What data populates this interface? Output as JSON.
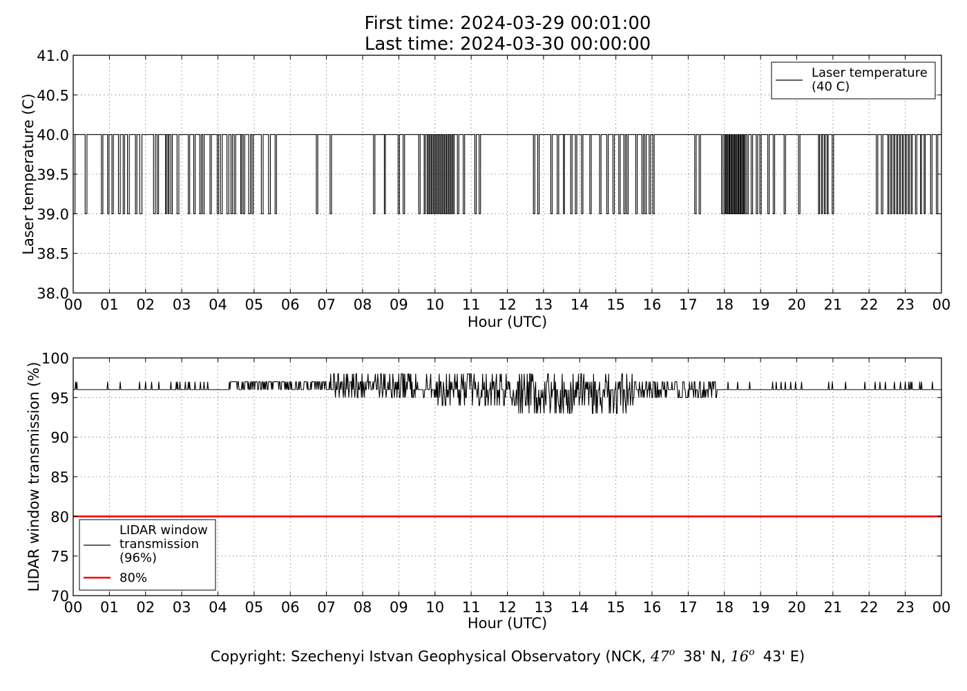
{
  "title": {
    "line1": "First time: 2024-03-29 00:01:00",
    "line2": "Last time: 2024-03-30 00:00:00"
  },
  "copyright": {
    "prefix": "Copyright: Szechenyi Istvan Geophysical Observatory (NCK, ",
    "lat_deg": "47",
    "lat_min": "38' N, ",
    "lon_deg": "16",
    "lon_min": "43' E)",
    "degree_mark": "o"
  },
  "chart_data": [
    {
      "type": "line",
      "name": "laser-temperature-panel",
      "xlabel": "Hour (UTC)",
      "ylabel": "Laser temperature (C)",
      "xlim": [
        0,
        24
      ],
      "ylim": [
        38.0,
        41.0
      ],
      "x_ticks": [
        "00",
        "01",
        "02",
        "03",
        "04",
        "05",
        "06",
        "07",
        "08",
        "09",
        "10",
        "11",
        "12",
        "13",
        "14",
        "15",
        "16",
        "17",
        "18",
        "19",
        "20",
        "21",
        "22",
        "23",
        "00"
      ],
      "y_ticks": [
        "38.0",
        "38.5",
        "39.0",
        "39.5",
        "40.0",
        "40.5",
        "41.0"
      ],
      "grid": true,
      "legend_position": "top-right",
      "series": [
        {
          "name": "Laser temperature\n(40 C)",
          "color": "#000000",
          "baseline": 40,
          "low_value": 39,
          "low_intervals": [
            [
              0.0,
              0.05
            ],
            [
              0.33,
              0.38
            ],
            [
              0.78,
              0.82
            ],
            [
              0.95,
              0.99
            ],
            [
              1.07,
              1.11
            ],
            [
              1.25,
              1.3
            ],
            [
              1.38,
              1.42
            ],
            [
              1.5,
              1.55
            ],
            [
              1.72,
              1.76
            ],
            [
              1.84,
              1.9
            ],
            [
              2.22,
              2.27
            ],
            [
              2.32,
              2.36
            ],
            [
              2.55,
              2.58
            ],
            [
              2.62,
              2.65
            ],
            [
              2.7,
              2.74
            ],
            [
              2.87,
              2.92
            ],
            [
              3.18,
              3.22
            ],
            [
              3.33,
              3.37
            ],
            [
              3.5,
              3.54
            ],
            [
              3.58,
              3.62
            ],
            [
              3.78,
              3.82
            ],
            [
              3.98,
              4.02
            ],
            [
              4.07,
              4.12
            ],
            [
              4.25,
              4.3
            ],
            [
              4.36,
              4.4
            ],
            [
              4.45,
              4.49
            ],
            [
              4.63,
              4.66
            ],
            [
              4.7,
              4.74
            ],
            [
              4.85,
              4.9
            ],
            [
              4.94,
              4.98
            ],
            [
              5.2,
              5.25
            ],
            [
              5.4,
              5.45
            ],
            [
              5.58,
              5.62
            ],
            [
              6.72,
              6.76
            ],
            [
              7.1,
              7.14
            ],
            [
              8.3,
              8.34
            ],
            [
              8.6,
              8.63
            ],
            [
              8.98,
              9.02
            ],
            [
              9.12,
              9.16
            ],
            [
              9.55,
              9.59
            ],
            [
              9.7,
              9.73
            ],
            [
              9.78,
              9.81
            ],
            [
              9.84,
              9.87
            ],
            [
              9.9,
              9.93
            ],
            [
              9.96,
              9.99
            ],
            [
              10.02,
              10.05
            ],
            [
              10.08,
              10.11
            ],
            [
              10.14,
              10.17
            ],
            [
              10.2,
              10.23
            ],
            [
              10.26,
              10.29
            ],
            [
              10.32,
              10.35
            ],
            [
              10.38,
              10.41
            ],
            [
              10.44,
              10.47
            ],
            [
              10.5,
              10.53
            ],
            [
              10.62,
              10.66
            ],
            [
              10.78,
              10.82
            ],
            [
              11.1,
              11.14
            ],
            [
              11.22,
              11.26
            ],
            [
              12.72,
              12.76
            ],
            [
              12.84,
              12.88
            ],
            [
              13.2,
              13.24
            ],
            [
              13.38,
              13.42
            ],
            [
              13.55,
              13.58
            ],
            [
              13.75,
              13.79
            ],
            [
              13.88,
              13.92
            ],
            [
              14.05,
              14.09
            ],
            [
              14.28,
              14.32
            ],
            [
              14.55,
              14.59
            ],
            [
              14.75,
              14.79
            ],
            [
              14.92,
              14.96
            ],
            [
              15.08,
              15.12
            ],
            [
              15.22,
              15.26
            ],
            [
              15.3,
              15.34
            ],
            [
              15.55,
              15.59
            ],
            [
              15.72,
              15.76
            ],
            [
              15.8,
              15.84
            ],
            [
              15.92,
              15.96
            ],
            [
              16.02,
              16.06
            ],
            [
              17.18,
              17.22
            ],
            [
              17.3,
              17.34
            ],
            [
              17.92,
              17.96
            ],
            [
              18.0,
              18.03
            ],
            [
              18.05,
              18.08
            ],
            [
              18.1,
              18.13
            ],
            [
              18.15,
              18.18
            ],
            [
              18.2,
              18.23
            ],
            [
              18.25,
              18.28
            ],
            [
              18.3,
              18.33
            ],
            [
              18.35,
              18.38
            ],
            [
              18.4,
              18.43
            ],
            [
              18.45,
              18.48
            ],
            [
              18.5,
              18.53
            ],
            [
              18.55,
              18.58
            ],
            [
              18.62,
              18.66
            ],
            [
              18.74,
              18.78
            ],
            [
              18.88,
              18.92
            ],
            [
              18.98,
              19.02
            ],
            [
              19.2,
              19.24
            ],
            [
              19.35,
              19.39
            ],
            [
              19.65,
              19.69
            ],
            [
              20.05,
              20.09
            ],
            [
              20.6,
              20.63
            ],
            [
              20.68,
              20.71
            ],
            [
              20.76,
              20.79
            ],
            [
              20.84,
              20.87
            ],
            [
              20.98,
              21.02
            ],
            [
              22.2,
              22.24
            ],
            [
              22.34,
              22.38
            ],
            [
              22.52,
              22.55
            ],
            [
              22.6,
              22.63
            ],
            [
              22.68,
              22.71
            ],
            [
              22.76,
              22.79
            ],
            [
              22.84,
              22.87
            ],
            [
              22.92,
              22.95
            ],
            [
              23.0,
              23.03
            ],
            [
              23.08,
              23.11
            ],
            [
              23.16,
              23.19
            ],
            [
              23.28,
              23.32
            ],
            [
              23.42,
              23.45
            ],
            [
              23.52,
              23.55
            ],
            [
              23.7,
              23.74
            ],
            [
              23.86,
              23.9
            ]
          ]
        }
      ]
    },
    {
      "type": "line",
      "name": "window-transmission-panel",
      "xlabel": "Hour (UTC)",
      "ylabel": "LIDAR window transmission (%)",
      "xlim": [
        0,
        24
      ],
      "ylim": [
        70,
        100
      ],
      "x_ticks": [
        "00",
        "01",
        "02",
        "03",
        "04",
        "05",
        "06",
        "07",
        "08",
        "09",
        "10",
        "11",
        "12",
        "13",
        "14",
        "15",
        "16",
        "17",
        "18",
        "19",
        "20",
        "21",
        "22",
        "23",
        "00"
      ],
      "y_ticks": [
        "70",
        "75",
        "80",
        "85",
        "90",
        "95",
        "100"
      ],
      "grid": true,
      "legend_position": "bottom-left",
      "series": [
        {
          "name": "LIDAR window\ntransmission\n(96%)",
          "color": "#000000",
          "baseline": 96,
          "noise_bands": [
            {
              "start": 0.0,
              "end": 4.3,
              "rate": 0.06,
              "up": [
                97
              ],
              "down": []
            },
            {
              "start": 4.3,
              "end": 7.0,
              "rate": 0.55,
              "up": [
                97
              ],
              "down": []
            },
            {
              "start": 7.0,
              "end": 10.0,
              "rate": 0.6,
              "up": [
                97,
                98
              ],
              "down": [
                95
              ]
            },
            {
              "start": 10.0,
              "end": 12.0,
              "rate": 0.6,
              "up": [
                97,
                98
              ],
              "down": [
                95,
                94
              ]
            },
            {
              "start": 12.0,
              "end": 15.5,
              "rate": 0.7,
              "up": [
                97,
                98
              ],
              "down": [
                95,
                94,
                93
              ]
            },
            {
              "start": 15.5,
              "end": 17.8,
              "rate": 0.55,
              "up": [
                97
              ],
              "down": [
                95
              ]
            },
            {
              "start": 17.8,
              "end": 24.0,
              "rate": 0.06,
              "up": [
                97
              ],
              "down": []
            }
          ],
          "seed": 7
        },
        {
          "name": "80%",
          "color": "#ff0000",
          "constant": 80
        }
      ]
    }
  ]
}
